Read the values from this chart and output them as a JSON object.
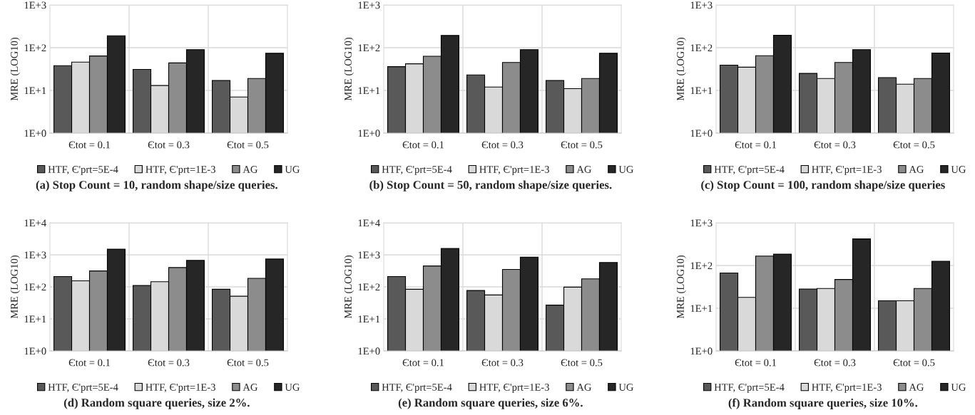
{
  "chart_data": [
    {
      "type": "bar",
      "title": "(a) Stop Count = 10, random shape/size queries.",
      "ylabel": "MRE (LOG10)",
      "categories": [
        "Єtot = 0.1",
        "Єtot = 0.3",
        "Єtot = 0.5"
      ],
      "log": "y",
      "ylim": [
        1,
        1000
      ],
      "yticks": [
        {
          "value": 1,
          "label": "1E+0"
        },
        {
          "value": 10,
          "label": "1E+1"
        },
        {
          "value": 100,
          "label": "1E+2"
        },
        {
          "value": 1000,
          "label": "1E+3"
        }
      ],
      "grid": true,
      "legend": "bottom",
      "series": [
        {
          "name": "HTF, Є'prt=5E-4",
          "color": "#595959",
          "values": [
            38,
            31,
            17
          ]
        },
        {
          "name": "HTF, Є'prt=1E-3",
          "color": "#d9d9d9",
          "values": [
            46,
            13,
            7
          ]
        },
        {
          "name": "AG",
          "color": "#8c8c8c",
          "values": [
            64,
            44,
            19
          ]
        },
        {
          "name": "UG",
          "color": "#262626",
          "values": [
            190,
            90,
            74
          ]
        }
      ]
    },
    {
      "type": "bar",
      "title": "(b) Stop Count = 50, random shape/size queries.",
      "ylabel": "MRE (LOG10)",
      "categories": [
        "Єtot = 0.1",
        "Єtot = 0.3",
        "Єtot = 0.5"
      ],
      "log": "y",
      "ylim": [
        1,
        1000
      ],
      "yticks": [
        {
          "value": 1,
          "label": "1E+0"
        },
        {
          "value": 10,
          "label": "1E+1"
        },
        {
          "value": 100,
          "label": "1E+2"
        },
        {
          "value": 1000,
          "label": "1E+3"
        }
      ],
      "grid": true,
      "legend": "bottom",
      "series": [
        {
          "name": "HTF, Є'prt=5E-4",
          "color": "#595959",
          "values": [
            36,
            23,
            17
          ]
        },
        {
          "name": "HTF, Є'prt=1E-3",
          "color": "#d9d9d9",
          "values": [
            42,
            12,
            11
          ]
        },
        {
          "name": "AG",
          "color": "#8c8c8c",
          "values": [
            63,
            45,
            19
          ]
        },
        {
          "name": "UG",
          "color": "#262626",
          "values": [
            193,
            90,
            74
          ]
        }
      ]
    },
    {
      "type": "bar",
      "title": "(c) Stop Count = 100, random shape/size queries",
      "ylabel": "MRE (LOG10)",
      "categories": [
        "Єtot = 0.1",
        "Єtot = 0.3",
        "Єtot = 0.5"
      ],
      "log": "y",
      "ylim": [
        1,
        1000
      ],
      "yticks": [
        {
          "value": 1,
          "label": "1E+0"
        },
        {
          "value": 10,
          "label": "1E+1"
        },
        {
          "value": 100,
          "label": "1E+2"
        },
        {
          "value": 1000,
          "label": "1E+3"
        }
      ],
      "grid": true,
      "legend": "bottom",
      "series": [
        {
          "name": "HTF, Є'prt=5E-4",
          "color": "#595959",
          "values": [
            39,
            25,
            20
          ]
        },
        {
          "name": "HTF, Є'prt=1E-3",
          "color": "#d9d9d9",
          "values": [
            35,
            19,
            14
          ]
        },
        {
          "name": "AG",
          "color": "#8c8c8c",
          "values": [
            65,
            45,
            19
          ]
        },
        {
          "name": "UG",
          "color": "#262626",
          "values": [
            195,
            90,
            75
          ]
        }
      ]
    },
    {
      "type": "bar",
      "title": "(d) Random square queries, size 2%.",
      "ylabel": "MRE (LOG10)",
      "categories": [
        "Єtot = 0.1",
        "Єtot = 0.3",
        "Єtot = 0.5"
      ],
      "log": "y",
      "ylim": [
        1,
        10000
      ],
      "yticks": [
        {
          "value": 1,
          "label": "1E+0"
        },
        {
          "value": 10,
          "label": "1E+1"
        },
        {
          "value": 100,
          "label": "1E+2"
        },
        {
          "value": 1000,
          "label": "1E+3"
        },
        {
          "value": 10000,
          "label": "1E+4"
        }
      ],
      "grid": true,
      "legend": "bottom",
      "series": [
        {
          "name": "HTF, Є'prt=5E-4",
          "color": "#595959",
          "values": [
            210,
            110,
            84
          ]
        },
        {
          "name": "HTF, Є'prt=1E-3",
          "color": "#d9d9d9",
          "values": [
            155,
            145,
            51
          ]
        },
        {
          "name": "AG",
          "color": "#8c8c8c",
          "values": [
            315,
            400,
            185
          ]
        },
        {
          "name": "UG",
          "color": "#262626",
          "values": [
            1500,
            675,
            740
          ]
        }
      ]
    },
    {
      "type": "bar",
      "title": "(e) Random square queries, size 6%.",
      "ylabel": "MRE (LOG10)",
      "categories": [
        "Єtot = 0.1",
        "Єtot = 0.3",
        "Єtot = 0.5"
      ],
      "log": "y",
      "ylim": [
        1,
        10000
      ],
      "yticks": [
        {
          "value": 1,
          "label": "1E+0"
        },
        {
          "value": 10,
          "label": "1E+1"
        },
        {
          "value": 100,
          "label": "1E+2"
        },
        {
          "value": 1000,
          "label": "1E+3"
        },
        {
          "value": 10000,
          "label": "1E+4"
        }
      ],
      "grid": true,
      "legend": "bottom",
      "series": [
        {
          "name": "HTF, Є'prt=5E-4",
          "color": "#595959",
          "values": [
            210,
            77,
            27
          ]
        },
        {
          "name": "HTF, Є'prt=1E-3",
          "color": "#d9d9d9",
          "values": [
            84,
            56,
            98
          ]
        },
        {
          "name": "AG",
          "color": "#8c8c8c",
          "values": [
            450,
            350,
            178
          ]
        },
        {
          "name": "UG",
          "color": "#262626",
          "values": [
            1590,
            840,
            575
          ]
        }
      ]
    },
    {
      "type": "bar",
      "title": "(f) Random square queries, size 10%.",
      "ylabel": "MRE (LOG10)",
      "categories": [
        "Єtot = 0.1",
        "Єtot = 0.3",
        "Єtot = 0.5"
      ],
      "log": "y",
      "ylim": [
        1,
        1000
      ],
      "yticks": [
        {
          "value": 1,
          "label": "1E+0"
        },
        {
          "value": 10,
          "label": "1E+1"
        },
        {
          "value": 100,
          "label": "1E+2"
        },
        {
          "value": 1000,
          "label": "1E+3"
        }
      ],
      "grid": true,
      "legend": "bottom",
      "series": [
        {
          "name": "HTF, Є'prt=5E-4",
          "color": "#595959",
          "values": [
            67,
            28,
            15
          ]
        },
        {
          "name": "HTF, Є'prt=1E-3",
          "color": "#d9d9d9",
          "values": [
            18,
            29,
            15
          ]
        },
        {
          "name": "AG",
          "color": "#8c8c8c",
          "values": [
            166,
            47,
            29
          ]
        },
        {
          "name": "UG",
          "color": "#262626",
          "values": [
            184,
            420,
            126
          ]
        }
      ]
    }
  ]
}
